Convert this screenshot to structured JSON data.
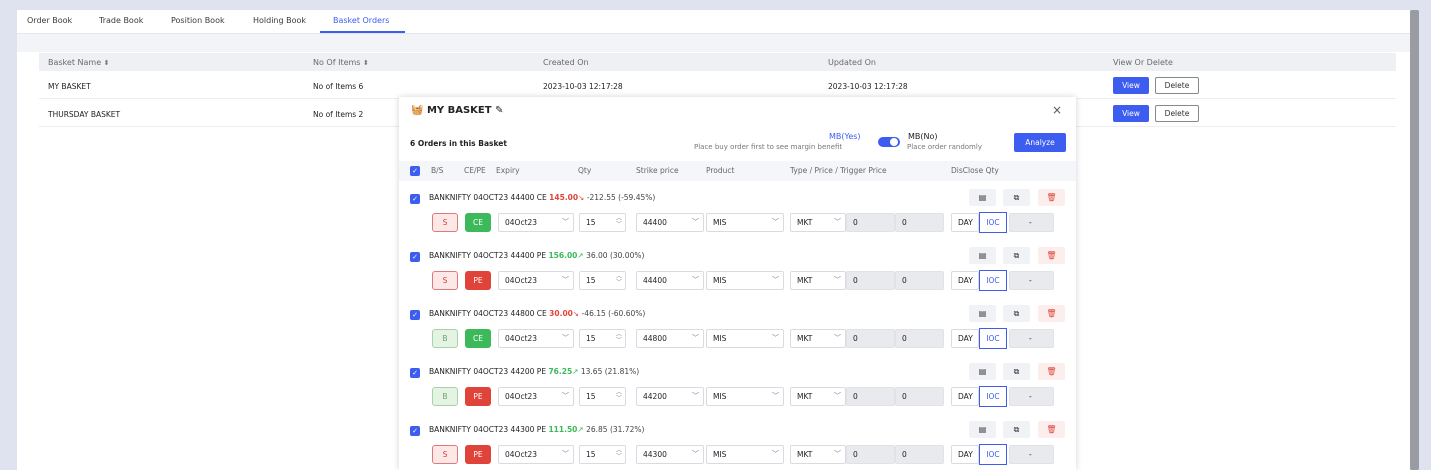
{
  "tabs": [
    {
      "label": "Order Book"
    },
    {
      "label": "Trade Book"
    },
    {
      "label": "Position Book"
    },
    {
      "label": "Holding Book"
    },
    {
      "label": "Basket Orders"
    }
  ],
  "active_tab": "Basket Orders",
  "table": {
    "headers": {
      "basket_name": "Basket Name",
      "no_of_items": "No Of Items",
      "created_on": "Created On",
      "updated_on": "Updated On",
      "view_or_delete": "View Or Delete"
    },
    "rows": [
      {
        "name": "MY BASKET",
        "items": "No of Items 6",
        "created": "2023-10-03 12:17:28",
        "updated": "2023-10-03 12:17:28",
        "view": "View",
        "delete": "Delete"
      },
      {
        "name": "THURSDAY BASKET",
        "items": "No of Items 2",
        "view": "View",
        "delete": "Delete"
      }
    ]
  },
  "modal": {
    "title": "MY BASKET",
    "close": "×",
    "order_count": "6 Orders in this Basket",
    "mb_yes": "MB(Yes)",
    "mb_yes_sub": "Place buy order first to see margin benefit",
    "mb_no": "MB(No)",
    "mb_no_sub": "Place order randomly",
    "analyze": "Analyze",
    "columns": {
      "bs": "B/S",
      "cepe": "CE/PE",
      "expiry": "Expiry",
      "qty": "Qty",
      "strike": "Strike price",
      "product": "Product",
      "type": "Type / Price / Trigger Price",
      "disclose": "DisClose Qty"
    },
    "orders": [
      {
        "symbol": "BANKNIFTY 04OCT23 44400 CE",
        "ltp": "145.00",
        "dir": "↘",
        "change": "-212.55 (-59.45%)",
        "ltp_color": "#e0433a",
        "side": "S",
        "opt": "CE",
        "expiry": "04Oct23",
        "qty": "15",
        "strike": "44400",
        "product": "MIS",
        "type": "MKT",
        "price": "0",
        "trigger": "0",
        "validity": "DAY",
        "ioc": "IOC",
        "disclose": "-"
      },
      {
        "symbol": "BANKNIFTY 04OCT23 44400 PE",
        "ltp": "156.00",
        "dir": "↗",
        "change": "36.00 (30.00%)",
        "ltp_color": "#3cb95a",
        "side": "S",
        "opt": "PE",
        "expiry": "04Oct23",
        "qty": "15",
        "strike": "44400",
        "product": "MIS",
        "type": "MKT",
        "price": "0",
        "trigger": "0",
        "validity": "DAY",
        "ioc": "IOC",
        "disclose": "-"
      },
      {
        "symbol": "BANKNIFTY 04OCT23 44800 CE",
        "ltp": "30.00",
        "dir": "↘",
        "change": "-46.15 (-60.60%)",
        "ltp_color": "#e0433a",
        "side": "B",
        "opt": "CE",
        "expiry": "04Oct23",
        "qty": "15",
        "strike": "44800",
        "product": "MIS",
        "type": "MKT",
        "price": "0",
        "trigger": "0",
        "validity": "DAY",
        "ioc": "IOC",
        "disclose": "-"
      },
      {
        "symbol": "BANKNIFTY 04OCT23 44200 PE",
        "ltp": "76.25",
        "dir": "↗",
        "change": "13.65 (21.81%)",
        "ltp_color": "#3cb95a",
        "side": "B",
        "opt": "PE",
        "expiry": "04Oct23",
        "qty": "15",
        "strike": "44200",
        "product": "MIS",
        "type": "MKT",
        "price": "0",
        "trigger": "0",
        "validity": "DAY",
        "ioc": "IOC",
        "disclose": "-"
      },
      {
        "symbol": "BANKNIFTY 04OCT23 44300 PE",
        "ltp": "111.50",
        "dir": "↗",
        "change": "26.85 (31.72%)",
        "ltp_color": "#3cb95a",
        "side": "S",
        "opt": "PE",
        "expiry": "04Oct23",
        "qty": "15",
        "strike": "44300",
        "product": "MIS",
        "type": "MKT",
        "price": "0",
        "trigger": "0",
        "validity": "DAY",
        "ioc": "IOC",
        "disclose": "-"
      }
    ]
  },
  "colors": {
    "accent": "#3d5cf0",
    "buy_green": "#3cb95a",
    "sell_red": "#e0433a"
  }
}
